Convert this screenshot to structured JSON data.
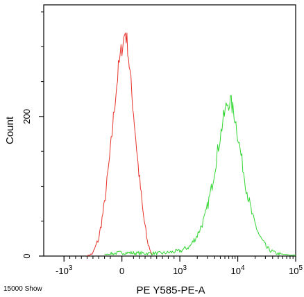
{
  "chart_data": {
    "type": "line",
    "title": "",
    "xlabel": "PE Y585-PE-A",
    "ylabel": "Count",
    "footer_note": "15000 Show",
    "x_ticks": [
      {
        "label": "-10",
        "exp": "3",
        "value": -1000
      },
      {
        "label": "0",
        "exp": "",
        "value": 0
      },
      {
        "label": "10",
        "exp": "3",
        "value": 1000
      },
      {
        "label": "10",
        "exp": "4",
        "value": 10000
      },
      {
        "label": "10",
        "exp": "5",
        "value": 100000
      }
    ],
    "y_ticks": [
      {
        "label": "0",
        "value": 0
      },
      {
        "label": "200",
        "value": 200
      }
    ],
    "ylim": [
      0,
      360
    ],
    "grid": false,
    "legend": "none",
    "series": [
      {
        "color": "#e8312a",
        "x": [
          -600,
          -500,
          -400,
          -300,
          -200,
          -120,
          -60,
          0,
          60,
          100,
          140,
          200,
          280,
          360,
          440,
          520
        ],
        "y": [
          0,
          4,
          25,
          75,
          150,
          222,
          268,
          300,
          322,
          300,
          262,
          206,
          130,
          65,
          20,
          2
        ]
      },
      {
        "color": "#33d633",
        "x": [
          -300,
          0,
          300,
          700,
          1000,
          1500,
          2000,
          2700,
          3500,
          4500,
          5500,
          6500,
          7500,
          9000,
          11000,
          14000,
          18000,
          24000,
          32000,
          45000,
          65000,
          100000
        ],
        "y": [
          2,
          5,
          4,
          4,
          7,
          14,
          30,
          55,
          96,
          150,
          192,
          218,
          222,
          198,
          152,
          98,
          56,
          28,
          11,
          4,
          2,
          1
        ]
      }
    ]
  }
}
